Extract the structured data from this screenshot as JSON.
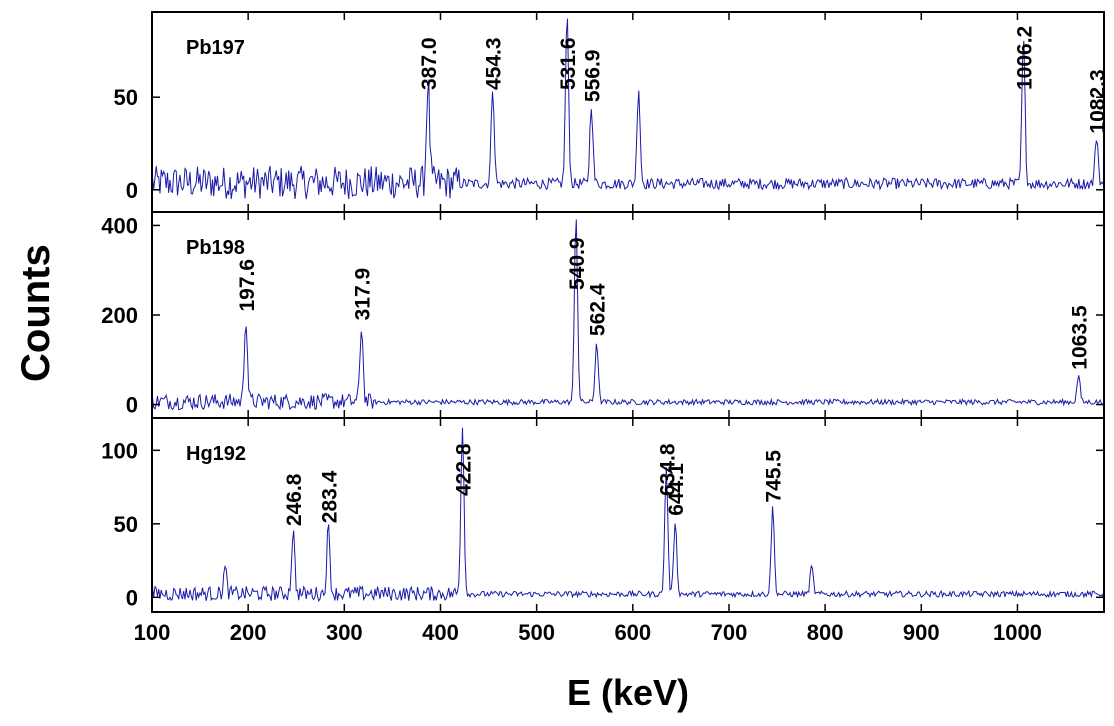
{
  "chart_data": {
    "type": "line",
    "ylabel": "Counts",
    "xlabel": "E (keV)",
    "xlim": [
      100,
      1090
    ],
    "x_ticks": [
      100,
      200,
      300,
      400,
      500,
      600,
      700,
      800,
      900,
      1000
    ],
    "colors": {
      "trace": "#1a1aa8",
      "axis": "#000000"
    },
    "panels": [
      {
        "label": "Pb197",
        "ylim": [
          -12,
          96
        ],
        "y_ticks": [
          0,
          50
        ],
        "noise": {
          "base": 3,
          "low_x_amp": 9,
          "low_x_until": 420,
          "high_x_amp": 3
        },
        "peaks": [
          {
            "x": 387.0,
            "y": 55,
            "label": "387.0"
          },
          {
            "x": 454.3,
            "y": 52,
            "label": "454.3"
          },
          {
            "x": 531.6,
            "y": 91,
            "label": "531.6"
          },
          {
            "x": 556.9,
            "y": 43,
            "label": "556.9"
          },
          {
            "x": 606.0,
            "y": 52,
            "label": ""
          },
          {
            "x": 1006.2,
            "y": 78,
            "label": "1006.2"
          },
          {
            "x": 1082.3,
            "y": 26,
            "label": "1082.3"
          }
        ]
      },
      {
        "label": "Pb198",
        "ylim": [
          -30,
          430
        ],
        "y_ticks": [
          0,
          200,
          400
        ],
        "noise": {
          "base": 5,
          "low_x_amp": 18,
          "low_x_until": 330,
          "high_x_amp": 6
        },
        "peaks": [
          {
            "x": 197.6,
            "y": 190,
            "label": "197.6"
          },
          {
            "x": 317.9,
            "y": 170,
            "label": "317.9"
          },
          {
            "x": 540.9,
            "y": 420,
            "label": "540.9"
          },
          {
            "x": 562.4,
            "y": 135,
            "label": "562.4"
          },
          {
            "x": 1063.5,
            "y": 60,
            "label": "1063.5"
          }
        ]
      },
      {
        "label": "Hg192",
        "ylim": [
          -10,
          122
        ],
        "y_ticks": [
          0,
          50,
          100
        ],
        "noise": {
          "base": 2,
          "low_x_amp": 5,
          "low_x_until": 420,
          "high_x_amp": 2
        },
        "peaks": [
          {
            "x": 176.0,
            "y": 17,
            "label": ""
          },
          {
            "x": 246.8,
            "y": 43,
            "label": "246.8"
          },
          {
            "x": 283.4,
            "y": 45,
            "label": "283.4"
          },
          {
            "x": 422.8,
            "y": 115,
            "label": "422.8"
          },
          {
            "x": 634.8,
            "y": 86,
            "label": "634.8"
          },
          {
            "x": 644.1,
            "y": 50,
            "label": "644.1"
          },
          {
            "x": 745.5,
            "y": 59,
            "label": "745.5"
          },
          {
            "x": 786.0,
            "y": 19,
            "label": ""
          }
        ]
      }
    ]
  }
}
